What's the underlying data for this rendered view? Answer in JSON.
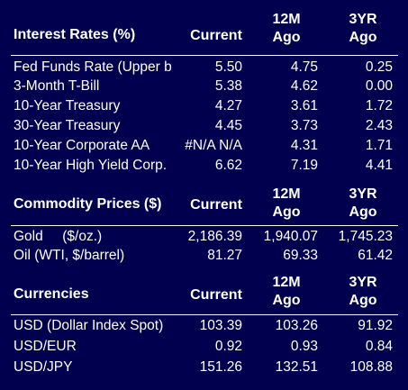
{
  "columns": {
    "current": "Current",
    "ago12_line1": "12M",
    "ago12_line2": "Ago",
    "ago3_line1": "3YR",
    "ago3_line2": "Ago"
  },
  "interest": {
    "title": "Interest Rates (%)",
    "rows": [
      {
        "name": "Fed Funds Rate (Upper b",
        "current": "5.50",
        "ago12": "4.75",
        "ago3": "0.25"
      },
      {
        "name": "3-Month T-Bill",
        "current": "5.38",
        "ago12": "4.62",
        "ago3": "0.00"
      },
      {
        "name": "10-Year Treasury",
        "current": "4.27",
        "ago12": "3.61",
        "ago3": "1.72"
      },
      {
        "name": "30-Year Treasury",
        "current": "4.45",
        "ago12": "3.73",
        "ago3": "2.43"
      },
      {
        "name": "10-Year Corporate AA",
        "current": "#N/A N/A",
        "ago12": "4.31",
        "ago3": "1.71"
      },
      {
        "name": "10-Year High Yield Corp.",
        "current": "6.62",
        "ago12": "7.19",
        "ago3": "4.41"
      }
    ]
  },
  "commodity": {
    "title": "Commodity Prices ($)",
    "rows": [
      {
        "name": "Gold     ($/oz.)",
        "current": "2,186.39",
        "ago12": "1,940.07",
        "ago3": "1,745.23"
      },
      {
        "name": "Oil (WTI, $/barrel)",
        "current": "81.27",
        "ago12": "69.33",
        "ago3": "61.42"
      }
    ]
  },
  "currencies": {
    "title": "Currencies",
    "rows": [
      {
        "name": "USD (Dollar Index Spot)",
        "current": "103.39",
        "ago12": "103.26",
        "ago3": "91.92"
      },
      {
        "name": "USD/EUR",
        "current": "0.92",
        "ago12": "0.93",
        "ago3": "0.84"
      },
      {
        "name": "USD/JPY",
        "current": "151.26",
        "ago12": "132.51",
        "ago3": "108.88"
      }
    ]
  }
}
